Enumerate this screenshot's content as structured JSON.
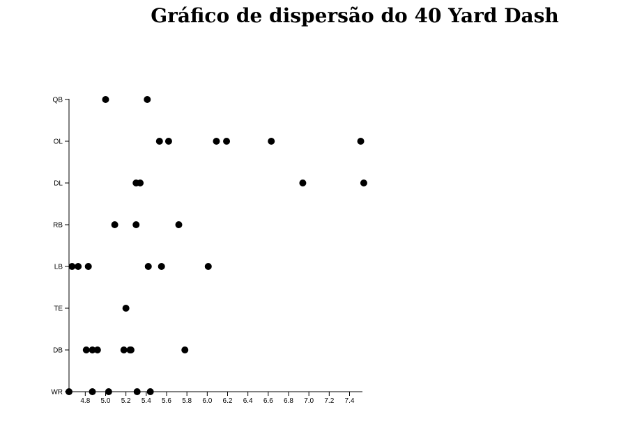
{
  "chart_data": {
    "type": "scatter",
    "title": "Gráfico de dispersão do 40 Yard Dash",
    "xlabel": "",
    "ylabel": "",
    "xlim": [
      4.64,
      7.52
    ],
    "xticks": [
      "4.8",
      "5.0",
      "5.2",
      "5.4",
      "5.6",
      "5.8",
      "6.0",
      "6.2",
      "6.4",
      "6.6",
      "6.8",
      "7.0",
      "7.2",
      "7.4"
    ],
    "categories": [
      "QB",
      "OL",
      "DL",
      "RB",
      "LB",
      "TE",
      "DB",
      "WR"
    ],
    "grid": false,
    "marker_color": "#000000",
    "points": [
      {
        "cat": "QB",
        "x": 5.0
      },
      {
        "cat": "QB",
        "x": 5.41
      },
      {
        "cat": "OL",
        "x": 5.53
      },
      {
        "cat": "OL",
        "x": 5.62
      },
      {
        "cat": "OL",
        "x": 6.09
      },
      {
        "cat": "OL",
        "x": 6.19
      },
      {
        "cat": "OL",
        "x": 6.63
      },
      {
        "cat": "OL",
        "x": 7.51
      },
      {
        "cat": "DL",
        "x": 5.3
      },
      {
        "cat": "DL",
        "x": 5.34
      },
      {
        "cat": "DL",
        "x": 6.94
      },
      {
        "cat": "DL",
        "x": 7.54
      },
      {
        "cat": "RB",
        "x": 5.09
      },
      {
        "cat": "RB",
        "x": 5.3
      },
      {
        "cat": "RB",
        "x": 5.72
      },
      {
        "cat": "LB",
        "x": 4.67
      },
      {
        "cat": "LB",
        "x": 4.73
      },
      {
        "cat": "LB",
        "x": 4.83
      },
      {
        "cat": "LB",
        "x": 5.42
      },
      {
        "cat": "LB",
        "x": 5.55
      },
      {
        "cat": "LB",
        "x": 6.01
      },
      {
        "cat": "TE",
        "x": 5.2
      },
      {
        "cat": "DB",
        "x": 4.81
      },
      {
        "cat": "DB",
        "x": 4.87
      },
      {
        "cat": "DB",
        "x": 4.92
      },
      {
        "cat": "DB",
        "x": 5.18
      },
      {
        "cat": "DB",
        "x": 5.24
      },
      {
        "cat": "DB",
        "x": 5.25
      },
      {
        "cat": "DB",
        "x": 5.78
      },
      {
        "cat": "WR",
        "x": 4.64
      },
      {
        "cat": "WR",
        "x": 4.87
      },
      {
        "cat": "WR",
        "x": 5.03
      },
      {
        "cat": "WR",
        "x": 5.31
      },
      {
        "cat": "WR",
        "x": 5.44
      }
    ]
  }
}
